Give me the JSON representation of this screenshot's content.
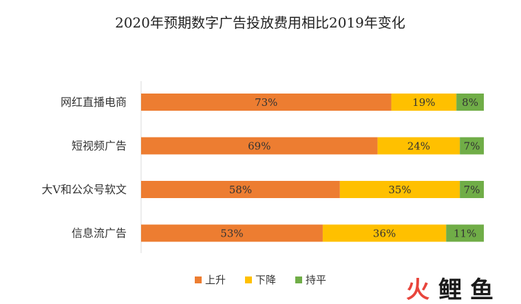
{
  "chart_data": {
    "type": "bar",
    "orientation": "horizontal",
    "stacked": true,
    "title": "2020年预期数字广告投放费用相比2019年变化",
    "categories": [
      "网红直播电商",
      "短视频广告",
      "大V和公众号软文",
      "信息流广告"
    ],
    "series": [
      {
        "name": "上升",
        "color": "#ED7D31",
        "values": [
          73,
          69,
          58,
          53
        ]
      },
      {
        "name": "下降",
        "color": "#FFC000",
        "values": [
          19,
          24,
          35,
          36
        ]
      },
      {
        "name": "持平",
        "color": "#70AD47",
        "values": [
          8,
          7,
          7,
          11
        ]
      }
    ],
    "value_suffix": "%",
    "xlim": [
      0,
      100
    ],
    "grid": false,
    "legend_position": "bottom"
  },
  "watermark": {
    "text": [
      "火",
      "鲤",
      "鱼"
    ],
    "colors": [
      "#E8453C",
      "#1A1A1A",
      "#1A1A1A"
    ]
  }
}
